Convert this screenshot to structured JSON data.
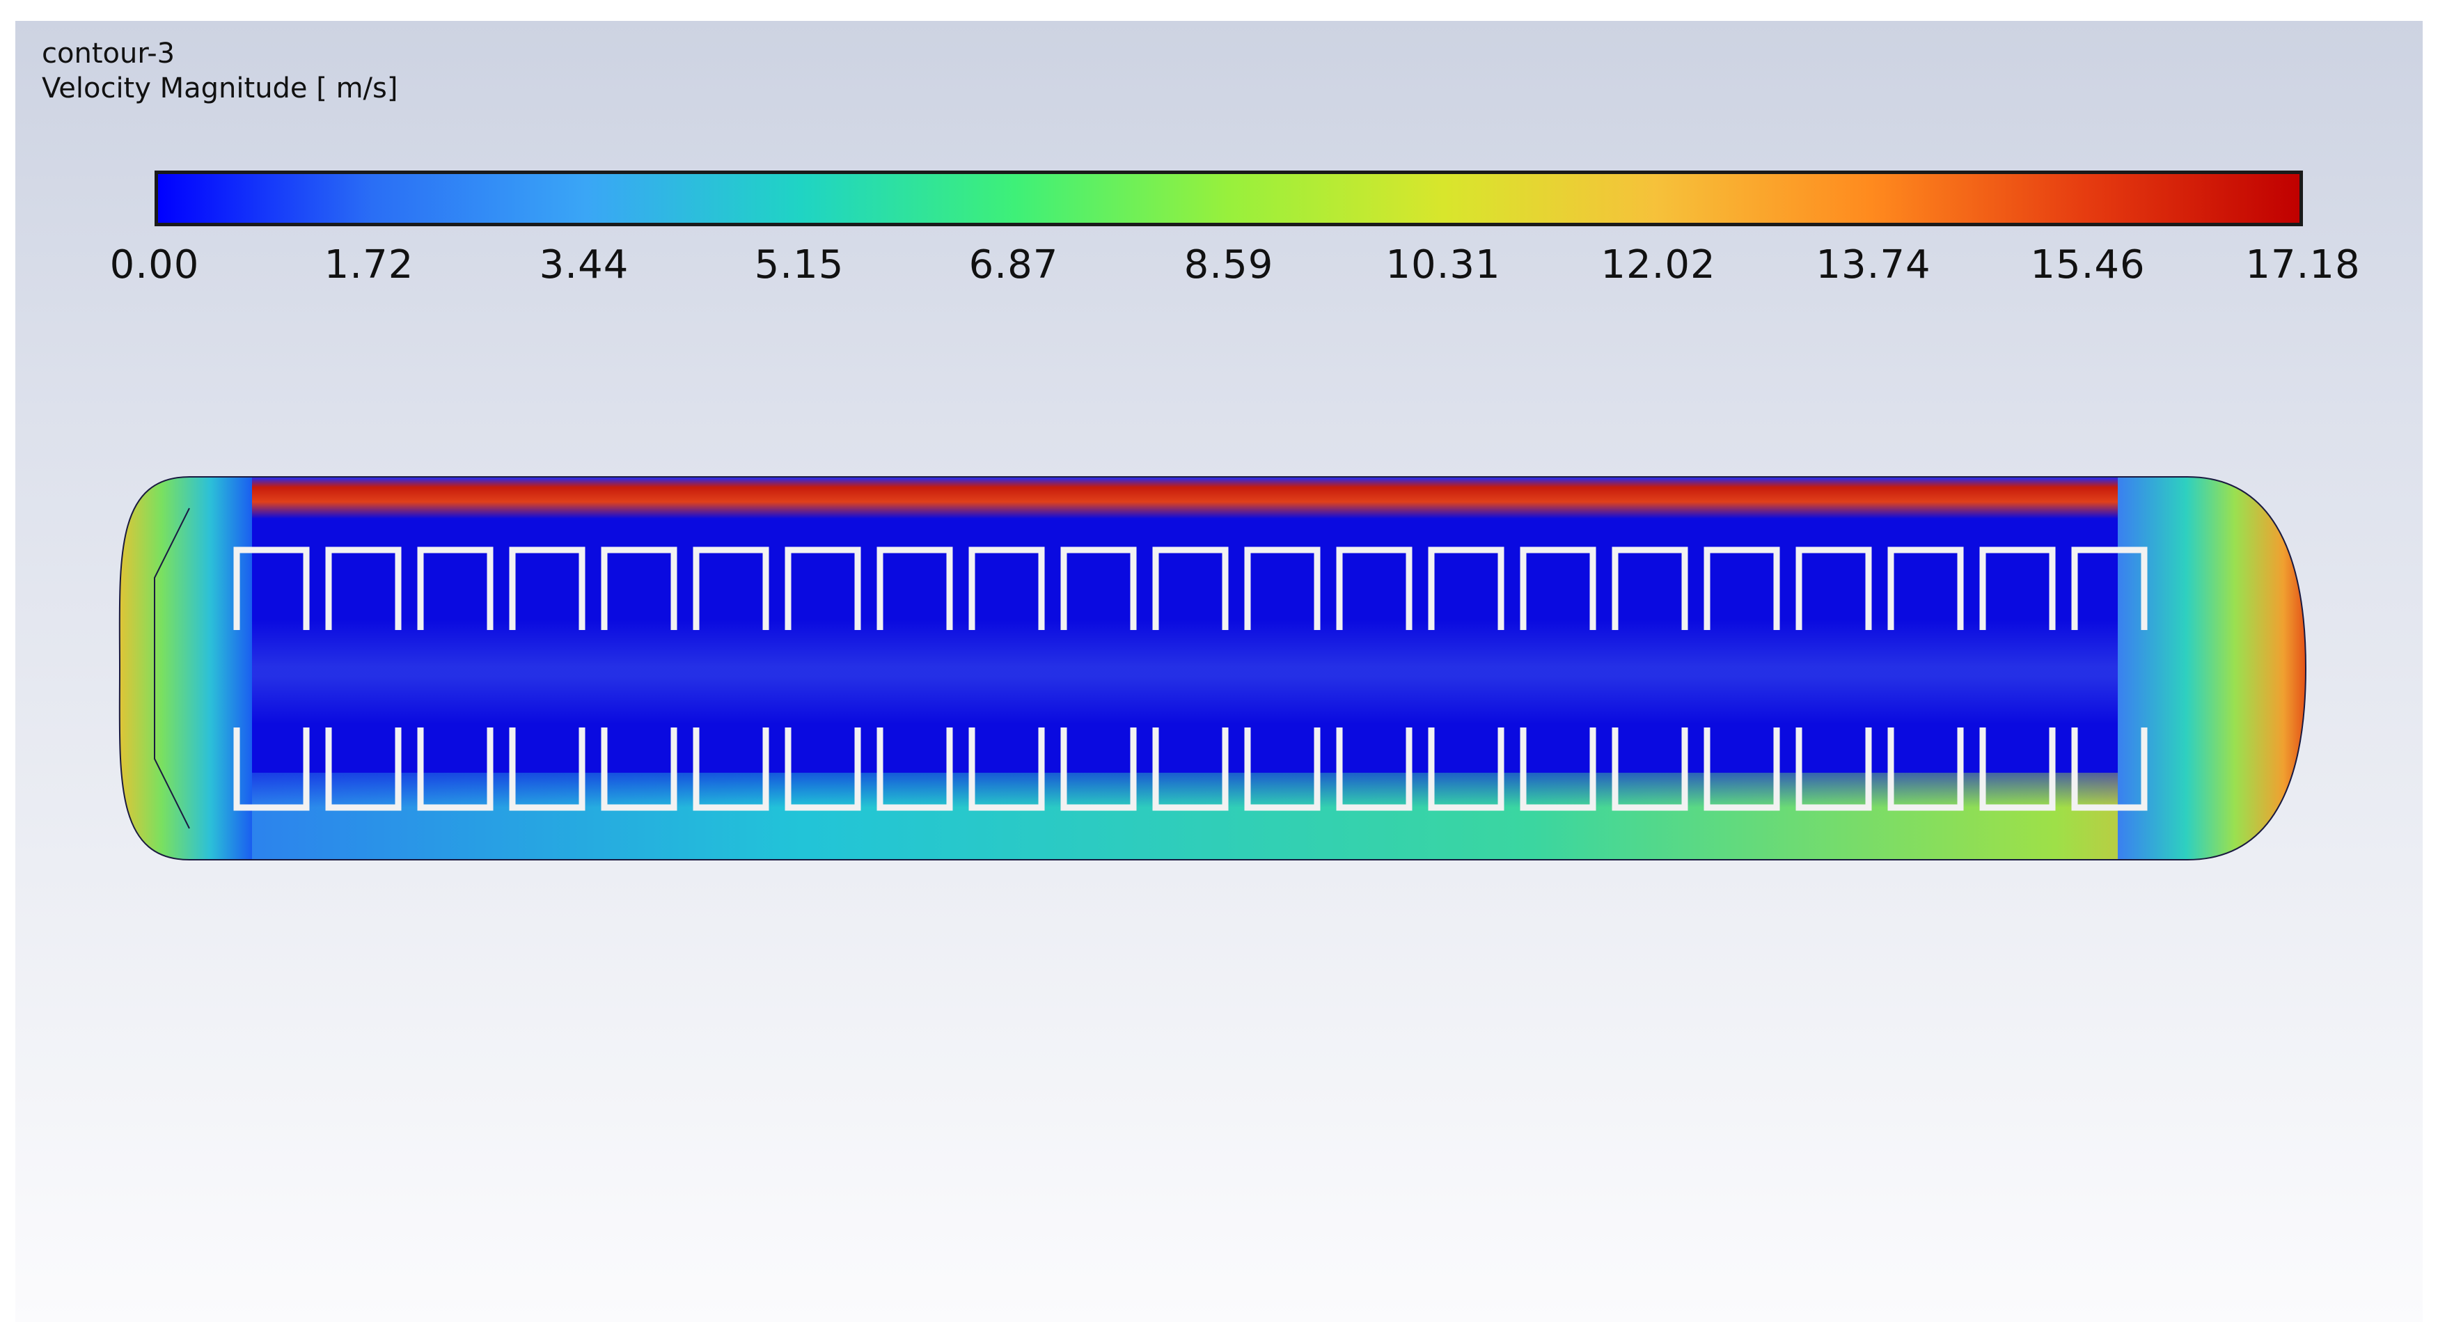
{
  "viewer": {
    "contour_name": "contour-3",
    "variable_label": "Velocity Magnitude [ m/s]"
  },
  "colorbar": {
    "min": 0.0,
    "max": 17.18,
    "colors": [
      "#0000ff",
      "#2a6ef5",
      "#3aa6f6",
      "#1fd4c4",
      "#3ef078",
      "#98f03c",
      "#d8e62c",
      "#f6c13a",
      "#ff8a1e",
      "#e63c10",
      "#c00000"
    ],
    "tick_labels": [
      "0.00",
      "1.72",
      "3.44",
      "5.15",
      "6.87",
      "8.59",
      "10.31",
      "12.02",
      "13.74",
      "15.46",
      "17.18"
    ]
  },
  "contour": {
    "fin_count_per_row": 21,
    "colors": {
      "core": "#0a0ae0",
      "top_wall": "#d42a10",
      "bottom_wall": "#2fd3b0",
      "fin": "#f2f2f2"
    }
  }
}
